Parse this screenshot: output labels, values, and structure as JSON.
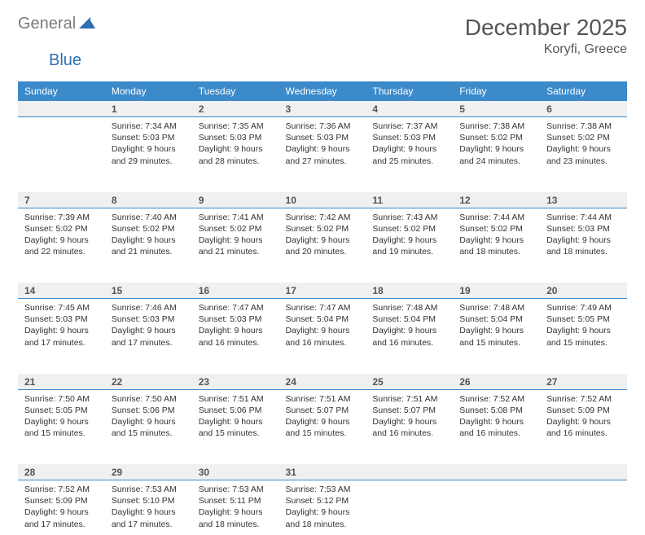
{
  "brand": {
    "part1": "General",
    "part2": "Blue"
  },
  "title": "December 2025",
  "location": "Koryfi, Greece",
  "dayHeaders": [
    "Sunday",
    "Monday",
    "Tuesday",
    "Wednesday",
    "Thursday",
    "Friday",
    "Saturday"
  ],
  "colors": {
    "headerBg": "#3b8aca",
    "dayNumBg": "#eef0f2",
    "divider": "#3b8aca",
    "text": "#333333",
    "titleText": "#555555"
  },
  "weeks": [
    {
      "nums": [
        "",
        "1",
        "2",
        "3",
        "4",
        "5",
        "6"
      ],
      "cells": [
        {},
        {
          "sr": "Sunrise: 7:34 AM",
          "ss": "Sunset: 5:03 PM",
          "dl": "Daylight: 9 hours and 29 minutes."
        },
        {
          "sr": "Sunrise: 7:35 AM",
          "ss": "Sunset: 5:03 PM",
          "dl": "Daylight: 9 hours and 28 minutes."
        },
        {
          "sr": "Sunrise: 7:36 AM",
          "ss": "Sunset: 5:03 PM",
          "dl": "Daylight: 9 hours and 27 minutes."
        },
        {
          "sr": "Sunrise: 7:37 AM",
          "ss": "Sunset: 5:03 PM",
          "dl": "Daylight: 9 hours and 25 minutes."
        },
        {
          "sr": "Sunrise: 7:38 AM",
          "ss": "Sunset: 5:02 PM",
          "dl": "Daylight: 9 hours and 24 minutes."
        },
        {
          "sr": "Sunrise: 7:38 AM",
          "ss": "Sunset: 5:02 PM",
          "dl": "Daylight: 9 hours and 23 minutes."
        }
      ]
    },
    {
      "nums": [
        "7",
        "8",
        "9",
        "10",
        "11",
        "12",
        "13"
      ],
      "cells": [
        {
          "sr": "Sunrise: 7:39 AM",
          "ss": "Sunset: 5:02 PM",
          "dl": "Daylight: 9 hours and 22 minutes."
        },
        {
          "sr": "Sunrise: 7:40 AM",
          "ss": "Sunset: 5:02 PM",
          "dl": "Daylight: 9 hours and 21 minutes."
        },
        {
          "sr": "Sunrise: 7:41 AM",
          "ss": "Sunset: 5:02 PM",
          "dl": "Daylight: 9 hours and 21 minutes."
        },
        {
          "sr": "Sunrise: 7:42 AM",
          "ss": "Sunset: 5:02 PM",
          "dl": "Daylight: 9 hours and 20 minutes."
        },
        {
          "sr": "Sunrise: 7:43 AM",
          "ss": "Sunset: 5:02 PM",
          "dl": "Daylight: 9 hours and 19 minutes."
        },
        {
          "sr": "Sunrise: 7:44 AM",
          "ss": "Sunset: 5:02 PM",
          "dl": "Daylight: 9 hours and 18 minutes."
        },
        {
          "sr": "Sunrise: 7:44 AM",
          "ss": "Sunset: 5:03 PM",
          "dl": "Daylight: 9 hours and 18 minutes."
        }
      ]
    },
    {
      "nums": [
        "14",
        "15",
        "16",
        "17",
        "18",
        "19",
        "20"
      ],
      "cells": [
        {
          "sr": "Sunrise: 7:45 AM",
          "ss": "Sunset: 5:03 PM",
          "dl": "Daylight: 9 hours and 17 minutes."
        },
        {
          "sr": "Sunrise: 7:46 AM",
          "ss": "Sunset: 5:03 PM",
          "dl": "Daylight: 9 hours and 17 minutes."
        },
        {
          "sr": "Sunrise: 7:47 AM",
          "ss": "Sunset: 5:03 PM",
          "dl": "Daylight: 9 hours and 16 minutes."
        },
        {
          "sr": "Sunrise: 7:47 AM",
          "ss": "Sunset: 5:04 PM",
          "dl": "Daylight: 9 hours and 16 minutes."
        },
        {
          "sr": "Sunrise: 7:48 AM",
          "ss": "Sunset: 5:04 PM",
          "dl": "Daylight: 9 hours and 16 minutes."
        },
        {
          "sr": "Sunrise: 7:48 AM",
          "ss": "Sunset: 5:04 PM",
          "dl": "Daylight: 9 hours and 15 minutes."
        },
        {
          "sr": "Sunrise: 7:49 AM",
          "ss": "Sunset: 5:05 PM",
          "dl": "Daylight: 9 hours and 15 minutes."
        }
      ]
    },
    {
      "nums": [
        "21",
        "22",
        "23",
        "24",
        "25",
        "26",
        "27"
      ],
      "cells": [
        {
          "sr": "Sunrise: 7:50 AM",
          "ss": "Sunset: 5:05 PM",
          "dl": "Daylight: 9 hours and 15 minutes."
        },
        {
          "sr": "Sunrise: 7:50 AM",
          "ss": "Sunset: 5:06 PM",
          "dl": "Daylight: 9 hours and 15 minutes."
        },
        {
          "sr": "Sunrise: 7:51 AM",
          "ss": "Sunset: 5:06 PM",
          "dl": "Daylight: 9 hours and 15 minutes."
        },
        {
          "sr": "Sunrise: 7:51 AM",
          "ss": "Sunset: 5:07 PM",
          "dl": "Daylight: 9 hours and 15 minutes."
        },
        {
          "sr": "Sunrise: 7:51 AM",
          "ss": "Sunset: 5:07 PM",
          "dl": "Daylight: 9 hours and 16 minutes."
        },
        {
          "sr": "Sunrise: 7:52 AM",
          "ss": "Sunset: 5:08 PM",
          "dl": "Daylight: 9 hours and 16 minutes."
        },
        {
          "sr": "Sunrise: 7:52 AM",
          "ss": "Sunset: 5:09 PM",
          "dl": "Daylight: 9 hours and 16 minutes."
        }
      ]
    },
    {
      "nums": [
        "28",
        "29",
        "30",
        "31",
        "",
        "",
        ""
      ],
      "cells": [
        {
          "sr": "Sunrise: 7:52 AM",
          "ss": "Sunset: 5:09 PM",
          "dl": "Daylight: 9 hours and 17 minutes."
        },
        {
          "sr": "Sunrise: 7:53 AM",
          "ss": "Sunset: 5:10 PM",
          "dl": "Daylight: 9 hours and 17 minutes."
        },
        {
          "sr": "Sunrise: 7:53 AM",
          "ss": "Sunset: 5:11 PM",
          "dl": "Daylight: 9 hours and 18 minutes."
        },
        {
          "sr": "Sunrise: 7:53 AM",
          "ss": "Sunset: 5:12 PM",
          "dl": "Daylight: 9 hours and 18 minutes."
        },
        {},
        {},
        {}
      ]
    }
  ]
}
